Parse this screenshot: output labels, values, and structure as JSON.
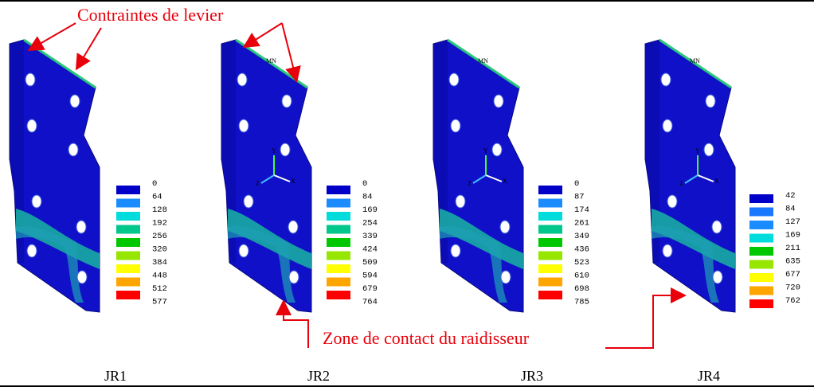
{
  "annotations": {
    "lever": "Contraintes de levier",
    "contact": "Zone de contact du raidisseur"
  },
  "panels": [
    {
      "id": "JR1",
      "caption": "JR1",
      "mn": "",
      "scale": [
        "0",
        "64",
        "128",
        "192",
        "256",
        "320",
        "384",
        "448",
        "512",
        "577"
      ],
      "colors": [
        "#0000c8",
        "#1a8cff",
        "#00dcdc",
        "#00c88c",
        "#00c800",
        "#96e600",
        "#ffff00",
        "#ffa500",
        "#ff0000"
      ]
    },
    {
      "id": "JR2",
      "caption": "JR2",
      "mn": "MN",
      "scale": [
        "0",
        "84",
        "169",
        "254",
        "339",
        "424",
        "509",
        "594",
        "679",
        "764"
      ],
      "colors": [
        "#0000c8",
        "#1a8cff",
        "#00dcdc",
        "#00c88c",
        "#00c800",
        "#96e600",
        "#ffff00",
        "#ffa500",
        "#ff0000"
      ]
    },
    {
      "id": "JR3",
      "caption": "JR3",
      "mn": "MN",
      "scale": [
        "0",
        "87",
        "174",
        "261",
        "349",
        "436",
        "523",
        "610",
        "698",
        "785"
      ],
      "colors": [
        "#0000c8",
        "#1a8cff",
        "#00dcdc",
        "#00c88c",
        "#00c800",
        "#96e600",
        "#ffff00",
        "#ffa500",
        "#ff0000"
      ]
    },
    {
      "id": "JR4",
      "caption": "JR4",
      "mn": "MN",
      "scale": [
        "42",
        "84",
        "127",
        "169",
        "211",
        "635",
        "677",
        "720",
        "762"
      ],
      "colors": [
        "#0000c8",
        "#1a78ff",
        "#1a8cff",
        "#00dcdc",
        "#00c800",
        "#96e600",
        "#ffff00",
        "#ffa500",
        "#ff0000"
      ]
    }
  ],
  "axis_labels": {
    "x": "X",
    "y": "Y",
    "z": "Z"
  }
}
